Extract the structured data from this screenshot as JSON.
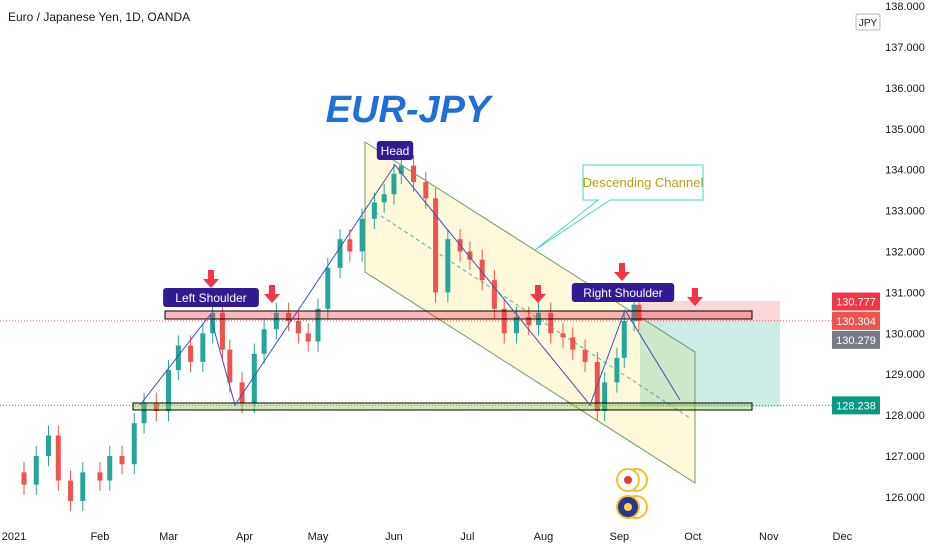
{
  "header": {
    "title": "Euro / Japanese Yen, 1D, OANDA",
    "currency": "JPY"
  },
  "annotations": {
    "main_title": "EUR-JPY",
    "head": "Head",
    "left_shoulder": "Left Shoulder",
    "right_shoulder": "Right Shoulder",
    "channel": "Descending Channel"
  },
  "colors": {
    "up": "#26a69a",
    "down": "#ef5350",
    "title": "#1e6fd9",
    "label_bg": "#311b92",
    "arrow": "#f23645"
  },
  "chart_data": {
    "type": "candlestick",
    "title": "Euro / Japanese Yen, 1D, OANDA",
    "ylim": [
      125.6,
      138.0
    ],
    "y_ticks": [
      "126.000",
      "127.000",
      "128.000",
      "129.000",
      "130.000",
      "131.000",
      "132.000",
      "133.000",
      "134.000",
      "135.000",
      "136.000",
      "137.000",
      "138.000"
    ],
    "x_ticks": [
      [
        "2021",
        "2021-01-01"
      ],
      [
        "Feb",
        "2021-02-01"
      ],
      [
        "Mar",
        "2021-03-01"
      ],
      [
        "Apr",
        "2021-04-01"
      ],
      [
        "May",
        "2021-05-01"
      ],
      [
        "Jun",
        "2021-06-01"
      ],
      [
        "Jul",
        "2021-07-01"
      ],
      [
        "Aug",
        "2021-08-01"
      ],
      [
        "Sep",
        "2021-09-01"
      ],
      [
        "Oct",
        "2021-10-01"
      ],
      [
        "Nov",
        "2021-11-01"
      ],
      [
        "Dec",
        "2021-12-01"
      ]
    ],
    "price_labels": [
      {
        "value": "130.777",
        "color": "#f23645"
      },
      {
        "value": "130.304",
        "color": "#ef5350"
      },
      {
        "value": "130.279",
        "color": "#787b86"
      },
      {
        "value": "128.238",
        "color": "#089981"
      }
    ],
    "closes": [
      [
        "2020-12-28",
        126.6
      ],
      [
        "2021-01-01",
        126.3
      ],
      [
        "2021-01-06",
        127.0
      ],
      [
        "2021-01-11",
        127.5
      ],
      [
        "2021-01-15",
        126.4
      ],
      [
        "2021-01-20",
        125.9
      ],
      [
        "2021-01-25",
        126.6
      ],
      [
        "2021-02-01",
        126.4
      ],
      [
        "2021-02-05",
        127.0
      ],
      [
        "2021-02-10",
        126.8
      ],
      [
        "2021-02-15",
        127.8
      ],
      [
        "2021-02-19",
        128.3
      ],
      [
        "2021-02-24",
        128.1
      ],
      [
        "2021-03-01",
        129.1
      ],
      [
        "2021-03-05",
        129.7
      ],
      [
        "2021-03-10",
        129.3
      ],
      [
        "2021-03-15",
        130.0
      ],
      [
        "2021-03-19",
        130.5
      ],
      [
        "2021-03-23",
        129.6
      ],
      [
        "2021-03-26",
        128.8
      ],
      [
        "2021-03-31",
        128.3
      ],
      [
        "2021-04-05",
        129.5
      ],
      [
        "2021-04-09",
        130.1
      ],
      [
        "2021-04-14",
        130.5
      ],
      [
        "2021-04-19",
        130.3
      ],
      [
        "2021-04-23",
        130.0
      ],
      [
        "2021-04-27",
        129.8
      ],
      [
        "2021-05-01",
        130.6
      ],
      [
        "2021-05-05",
        131.6
      ],
      [
        "2021-05-10",
        132.3
      ],
      [
        "2021-05-14",
        132.0
      ],
      [
        "2021-05-19",
        132.8
      ],
      [
        "2021-05-24",
        133.2
      ],
      [
        "2021-05-28",
        133.4
      ],
      [
        "2021-06-01",
        133.9
      ],
      [
        "2021-06-04",
        134.1
      ],
      [
        "2021-06-09",
        133.7
      ],
      [
        "2021-06-14",
        133.3
      ],
      [
        "2021-06-18",
        131.0
      ],
      [
        "2021-06-23",
        132.3
      ],
      [
        "2021-06-28",
        132.0
      ],
      [
        "2021-07-02",
        131.8
      ],
      [
        "2021-07-07",
        131.3
      ],
      [
        "2021-07-12",
        130.6
      ],
      [
        "2021-07-16",
        130.0
      ],
      [
        "2021-07-21",
        130.4
      ],
      [
        "2021-07-26",
        130.2
      ],
      [
        "2021-07-30",
        130.5
      ],
      [
        "2021-08-04",
        130.0
      ],
      [
        "2021-08-09",
        129.9
      ],
      [
        "2021-08-13",
        129.6
      ],
      [
        "2021-08-18",
        129.3
      ],
      [
        "2021-08-23",
        128.1
      ],
      [
        "2021-08-26",
        128.8
      ],
      [
        "2021-08-31",
        129.4
      ],
      [
        "2021-09-03",
        130.3
      ],
      [
        "2021-09-07",
        130.7
      ],
      [
        "2021-09-09",
        130.3
      ]
    ]
  }
}
